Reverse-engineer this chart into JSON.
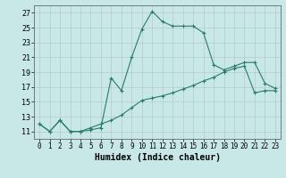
{
  "title": "",
  "xlabel": "Humidex (Indice chaleur)",
  "ylabel": "",
  "background_color": "#c8e8e8",
  "grid_color": "#b0b0b0",
  "line_color": "#2a7a6a",
  "xlim": [
    -0.5,
    23.5
  ],
  "ylim": [
    10.0,
    28.0
  ],
  "yticks": [
    11,
    13,
    15,
    17,
    19,
    21,
    23,
    25,
    27
  ],
  "xticks": [
    0,
    1,
    2,
    3,
    4,
    5,
    6,
    7,
    8,
    9,
    10,
    11,
    12,
    13,
    14,
    15,
    16,
    17,
    18,
    19,
    20,
    21,
    22,
    23
  ],
  "series1_x": [
    0,
    1,
    2,
    3,
    4,
    5,
    6,
    7,
    8,
    9,
    10,
    11,
    12,
    13,
    14,
    15,
    16,
    17,
    18,
    19,
    20,
    21,
    22,
    23
  ],
  "series1_y": [
    12.0,
    11.0,
    12.5,
    11.0,
    11.0,
    11.2,
    11.5,
    18.2,
    16.5,
    21.0,
    24.8,
    27.2,
    25.8,
    25.2,
    25.2,
    25.2,
    24.3,
    20.0,
    19.3,
    19.8,
    20.3,
    20.3,
    17.5,
    16.8
  ],
  "series2_x": [
    0,
    1,
    2,
    3,
    4,
    5,
    6,
    7,
    8,
    9,
    10,
    11,
    12,
    13,
    14,
    15,
    16,
    17,
    18,
    19,
    20,
    21,
    22,
    23
  ],
  "series2_y": [
    12.0,
    11.0,
    12.5,
    11.0,
    11.0,
    11.5,
    12.0,
    12.5,
    13.2,
    14.2,
    15.2,
    15.5,
    15.8,
    16.2,
    16.7,
    17.2,
    17.8,
    18.3,
    19.0,
    19.5,
    19.8,
    16.2,
    16.5,
    16.5
  ]
}
